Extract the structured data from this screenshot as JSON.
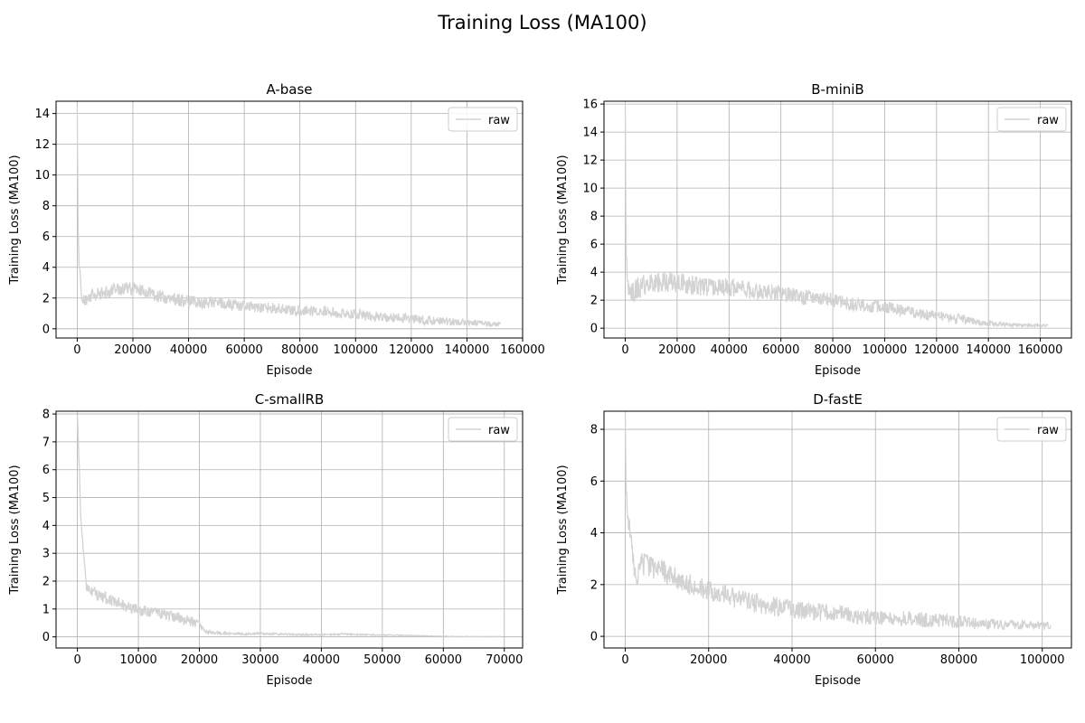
{
  "figure": {
    "title": "Training Loss (MA100)"
  },
  "colors": {
    "raw": "#d3d3d3",
    "grid": "#b0b0b0",
    "axis": "#000000",
    "legend_border": "#cccccc"
  },
  "chart_data": [
    {
      "type": "line",
      "title": "A-base",
      "xlabel": "Episode",
      "ylabel": "Training Loss (MA100)",
      "xlim": [
        -7600,
        160000
      ],
      "ylim": [
        -0.6,
        14.8
      ],
      "xticks": [
        0,
        20000,
        40000,
        60000,
        80000,
        100000,
        120000,
        140000,
        160000
      ],
      "yticks": [
        0,
        2,
        4,
        6,
        8,
        10,
        12,
        14
      ],
      "grid": true,
      "legend": {
        "position": "top-right",
        "entries": [
          "raw"
        ]
      },
      "series": [
        {
          "name": "raw",
          "x": [
            0,
            300,
            800,
            1500,
            3000,
            5000,
            8000,
            12000,
            16000,
            20000,
            24000,
            28000,
            32000,
            36000,
            40000,
            45000,
            50000,
            55000,
            60000,
            65000,
            70000,
            75000,
            80000,
            85000,
            90000,
            95000,
            100000,
            105000,
            110000,
            115000,
            120000,
            125000,
            130000,
            135000,
            140000,
            145000,
            150000,
            152000
          ],
          "y": [
            14.2,
            6.5,
            3.8,
            2.2,
            1.9,
            2.1,
            2.3,
            2.5,
            2.6,
            2.6,
            2.4,
            2.2,
            2.0,
            1.9,
            1.8,
            1.7,
            1.7,
            1.6,
            1.5,
            1.4,
            1.35,
            1.25,
            1.2,
            1.15,
            1.1,
            1.0,
            0.95,
            0.85,
            0.75,
            0.7,
            0.65,
            0.55,
            0.5,
            0.45,
            0.4,
            0.35,
            0.3,
            0.3
          ],
          "noise": [
            0.9,
            0.55
          ]
        }
      ]
    },
    {
      "type": "line",
      "title": "B-miniB",
      "xlabel": "Episode",
      "ylabel": "Training Loss (MA100)",
      "xlim": [
        -8200,
        172000
      ],
      "ylim": [
        -0.7,
        16.2
      ],
      "xticks": [
        0,
        20000,
        40000,
        60000,
        80000,
        100000,
        120000,
        140000,
        160000
      ],
      "yticks": [
        0,
        2,
        4,
        6,
        8,
        10,
        12,
        14,
        16
      ],
      "grid": true,
      "legend": {
        "position": "top-right",
        "entries": [
          "raw"
        ]
      },
      "series": [
        {
          "name": "raw",
          "x": [
            0,
            300,
            800,
            1500,
            3000,
            6000,
            10000,
            15000,
            20000,
            25000,
            30000,
            35000,
            40000,
            45000,
            50000,
            55000,
            60000,
            65000,
            70000,
            75000,
            80000,
            85000,
            90000,
            95000,
            100000,
            105000,
            110000,
            115000,
            120000,
            125000,
            130000,
            135000,
            140000,
            145000,
            150000,
            155000,
            160000,
            163000
          ],
          "y": [
            15.5,
            6.0,
            3.0,
            2.4,
            2.6,
            3.0,
            3.2,
            3.3,
            3.3,
            3.1,
            3.0,
            2.9,
            2.9,
            2.8,
            2.7,
            2.6,
            2.5,
            2.3,
            2.2,
            2.1,
            2.0,
            1.8,
            1.7,
            1.6,
            1.5,
            1.3,
            1.1,
            1.0,
            0.85,
            0.7,
            0.6,
            0.45,
            0.35,
            0.3,
            0.25,
            0.2,
            0.2,
            0.2
          ],
          "noise": [
            1.6,
            0.5
          ]
        }
      ]
    },
    {
      "type": "line",
      "title": "C-smallRB",
      "xlabel": "Episode",
      "ylabel": "Training Loss (MA100)",
      "xlim": [
        -3500,
        73000
      ],
      "ylim": [
        -0.4,
        8.1
      ],
      "xticks": [
        0,
        10000,
        20000,
        30000,
        40000,
        50000,
        60000,
        70000
      ],
      "yticks": [
        0,
        1,
        2,
        3,
        4,
        5,
        6,
        7,
        8
      ],
      "grid": true,
      "legend": {
        "position": "top-right",
        "entries": [
          "raw"
        ]
      },
      "series": [
        {
          "name": "raw",
          "x": [
            0,
            200,
            500,
            1000,
            1500,
            2500,
            4000,
            6000,
            8000,
            10000,
            12000,
            14000,
            16000,
            18000,
            20000,
            21000,
            22000,
            25000,
            28000,
            30000,
            33000,
            36000,
            40000,
            44000,
            48000,
            52000,
            56000,
            60000,
            65000,
            69500
          ],
          "y": [
            7.8,
            6.8,
            4.5,
            3.0,
            1.8,
            1.6,
            1.45,
            1.3,
            1.1,
            0.95,
            0.9,
            0.8,
            0.7,
            0.6,
            0.45,
            0.2,
            0.15,
            0.12,
            0.1,
            0.12,
            0.1,
            0.08,
            0.08,
            0.1,
            0.07,
            0.06,
            0.04,
            0.02,
            0.01,
            0.01
          ],
          "noise": [
            0.45,
            0.15
          ]
        }
      ]
    },
    {
      "type": "line",
      "title": "D-fastE",
      "xlabel": "Episode",
      "ylabel": "Training Loss (MA100)",
      "xlim": [
        -5100,
        107000
      ],
      "ylim": [
        -0.45,
        8.7
      ],
      "xticks": [
        0,
        20000,
        40000,
        60000,
        80000,
        100000
      ],
      "yticks": [
        0,
        2,
        4,
        6,
        8
      ],
      "grid": true,
      "legend": {
        "position": "top-right",
        "entries": [
          "raw"
        ]
      },
      "series": [
        {
          "name": "raw",
          "x": [
            0,
            200,
            500,
            1000,
            1500,
            2500,
            4000,
            6000,
            8000,
            10000,
            13000,
            16000,
            20000,
            24000,
            28000,
            32000,
            36000,
            40000,
            45000,
            50000,
            55000,
            60000,
            65000,
            70000,
            75000,
            80000,
            85000,
            90000,
            95000,
            100000,
            102000
          ],
          "y": [
            8.3,
            6.0,
            4.8,
            4.3,
            3.5,
            2.2,
            2.8,
            2.7,
            2.6,
            2.4,
            2.2,
            2.0,
            1.8,
            1.6,
            1.4,
            1.25,
            1.15,
            1.05,
            0.95,
            0.9,
            0.8,
            0.75,
            0.7,
            0.65,
            0.6,
            0.55,
            0.5,
            0.45,
            0.45,
            0.4,
            0.4
          ],
          "noise": [
            0.9,
            0.45
          ]
        }
      ]
    }
  ]
}
